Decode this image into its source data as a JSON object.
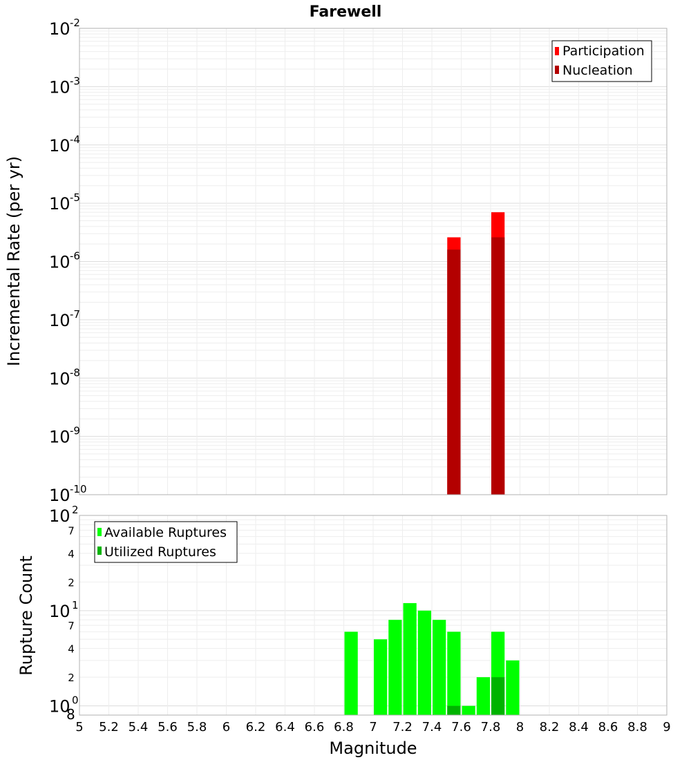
{
  "chart_data": [
    {
      "type": "bar",
      "title": "Farewell",
      "xlabel": "",
      "ylabel": "Incremental Rate (per yr)",
      "xlim": [
        5,
        9
      ],
      "ylim": [
        1e-10,
        0.01
      ],
      "yscale": "log",
      "bin_width": 0.1,
      "y_tick_exponents": [
        "-2",
        "-3",
        "-4",
        "-5",
        "-6",
        "-7",
        "-8",
        "-9",
        "-10"
      ],
      "grid": true,
      "legend_position": "top-right",
      "series": [
        {
          "name": "Participation",
          "color": "#ff0000",
          "x": [
            7.55,
            7.85
          ],
          "values": [
            2.6e-06,
            7e-06
          ]
        },
        {
          "name": "Nucleation",
          "color": "#b30000",
          "x": [
            7.55,
            7.85
          ],
          "values": [
            1.6e-06,
            2.6e-06
          ]
        }
      ]
    },
    {
      "type": "bar",
      "title": "",
      "xlabel": "Magnitude",
      "ylabel": "Rupture Count",
      "xlim": [
        5,
        9
      ],
      "ylim": [
        0.8,
        100
      ],
      "yscale": "log",
      "bin_width": 0.1,
      "x_tick_labels": [
        "5",
        "5.2",
        "5.4",
        "5.6",
        "5.8",
        "6",
        "6.2",
        "6.4",
        "6.6",
        "6.8",
        "7",
        "7.2",
        "7.4",
        "7.6",
        "7.8",
        "8",
        "8.2",
        "8.4",
        "8.6",
        "8.8",
        "9"
      ],
      "y_major_ticks": [
        {
          "base": "10",
          "exp": "2"
        },
        {
          "base": "10",
          "exp": "1"
        },
        {
          "base": "10",
          "exp": "0"
        }
      ],
      "y_minor_labels": [
        "7",
        "4",
        "2",
        "7",
        "4",
        "2"
      ],
      "y_bottom_label": "8",
      "grid": true,
      "legend_position": "top-left",
      "series": [
        {
          "name": "Available Ruptures",
          "color": "#00ff00",
          "x": [
            6.85,
            7.05,
            7.15,
            7.25,
            7.35,
            7.45,
            7.55,
            7.65,
            7.75,
            7.85,
            7.95
          ],
          "values": [
            6,
            5,
            8,
            12,
            10,
            8,
            6,
            1,
            2,
            6,
            3
          ]
        },
        {
          "name": "Utilized Ruptures",
          "color": "#00b300",
          "x": [
            7.55,
            7.85
          ],
          "values": [
            1,
            2
          ]
        }
      ]
    }
  ]
}
